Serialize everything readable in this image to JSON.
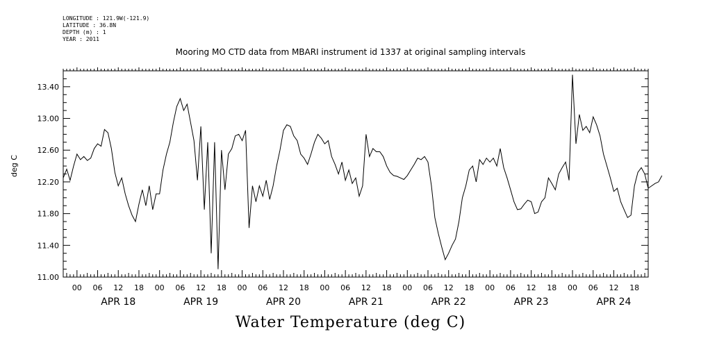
{
  "header": {
    "longitude": "LONGITUDE : 121.9W(-121.9)",
    "latitude": "LATITUDE : 36.8N",
    "depth": "DEPTH (m) : 1",
    "year": "YEAR : 2011"
  },
  "chart_data": {
    "type": "line",
    "title": "Mooring MO CTD data from MBARI instrument id 1337 at original sampling intervals",
    "xlabel": "Water Temperature (deg C)",
    "ylabel": "deg C",
    "ylim": [
      11.0,
      13.6
    ],
    "xlim": [
      "2011-04-17T20:00",
      "2011-04-24T22:00"
    ],
    "y_ticks": [
      "11.00",
      "11.40",
      "11.80",
      "12.20",
      "12.60",
      "13.00",
      "13.40"
    ],
    "hour_tick_labels": [
      "00",
      "06",
      "12",
      "18"
    ],
    "day_labels": [
      {
        "date": "2011-04-18",
        "label": "APR 18"
      },
      {
        "date": "2011-04-19",
        "label": "APR 19"
      },
      {
        "date": "2011-04-20",
        "label": "APR 20"
      },
      {
        "date": "2011-04-21",
        "label": "APR 21"
      },
      {
        "date": "2011-04-22",
        "label": "APR 22"
      },
      {
        "date": "2011-04-23",
        "label": "APR 23"
      },
      {
        "date": "2011-04-24",
        "label": "APR 24"
      }
    ],
    "grid": false,
    "series": [
      {
        "color": "#000000",
        "points": [
          [
            "2011-04-17T20:00",
            12.25
          ],
          [
            "2011-04-17T21:00",
            12.36
          ],
          [
            "2011-04-17T22:00",
            12.22
          ],
          [
            "2011-04-17T23:00",
            12.4
          ],
          [
            "2011-04-18T00:00",
            12.55
          ],
          [
            "2011-04-18T01:00",
            12.48
          ],
          [
            "2011-04-18T02:00",
            12.52
          ],
          [
            "2011-04-18T03:00",
            12.47
          ],
          [
            "2011-04-18T04:00",
            12.5
          ],
          [
            "2011-04-18T05:00",
            12.62
          ],
          [
            "2011-04-18T06:00",
            12.68
          ],
          [
            "2011-04-18T07:00",
            12.65
          ],
          [
            "2011-04-18T08:00",
            12.86
          ],
          [
            "2011-04-18T09:00",
            12.82
          ],
          [
            "2011-04-18T10:00",
            12.62
          ],
          [
            "2011-04-18T11:00",
            12.32
          ],
          [
            "2011-04-18T12:00",
            12.15
          ],
          [
            "2011-04-18T13:00",
            12.25
          ],
          [
            "2011-04-18T14:00",
            12.05
          ],
          [
            "2011-04-18T15:00",
            11.9
          ],
          [
            "2011-04-18T16:00",
            11.78
          ],
          [
            "2011-04-18T17:00",
            11.7
          ],
          [
            "2011-04-18T18:00",
            11.92
          ],
          [
            "2011-04-18T19:00",
            12.1
          ],
          [
            "2011-04-18T20:00",
            11.9
          ],
          [
            "2011-04-18T21:00",
            12.15
          ],
          [
            "2011-04-18T22:00",
            11.85
          ],
          [
            "2011-04-18T23:00",
            12.05
          ],
          [
            "2011-04-19T00:00",
            12.05
          ],
          [
            "2011-04-19T01:00",
            12.35
          ],
          [
            "2011-04-19T02:00",
            12.55
          ],
          [
            "2011-04-19T03:00",
            12.7
          ],
          [
            "2011-04-19T04:00",
            12.95
          ],
          [
            "2011-04-19T05:00",
            13.15
          ],
          [
            "2011-04-19T06:00",
            13.25
          ],
          [
            "2011-04-19T07:00",
            13.1
          ],
          [
            "2011-04-19T08:00",
            13.18
          ],
          [
            "2011-04-19T09:00",
            12.95
          ],
          [
            "2011-04-19T10:00",
            12.72
          ],
          [
            "2011-04-19T11:00",
            12.22
          ],
          [
            "2011-04-19T12:00",
            12.9
          ],
          [
            "2011-04-19T13:00",
            11.85
          ],
          [
            "2011-04-19T14:00",
            12.7
          ],
          [
            "2011-04-19T15:00",
            11.3
          ],
          [
            "2011-04-19T16:00",
            12.7
          ],
          [
            "2011-04-19T17:00",
            11.1
          ],
          [
            "2011-04-19T18:00",
            12.6
          ],
          [
            "2011-04-19T19:00",
            12.1
          ],
          [
            "2011-04-19T20:00",
            12.55
          ],
          [
            "2011-04-19T21:00",
            12.62
          ],
          [
            "2011-04-19T22:00",
            12.78
          ],
          [
            "2011-04-19T23:00",
            12.8
          ],
          [
            "2011-04-20T00:00",
            12.72
          ],
          [
            "2011-04-20T01:00",
            12.85
          ],
          [
            "2011-04-20T02:00",
            11.62
          ],
          [
            "2011-04-20T03:00",
            12.15
          ],
          [
            "2011-04-20T04:00",
            11.95
          ],
          [
            "2011-04-20T05:00",
            12.15
          ],
          [
            "2011-04-20T06:00",
            12.02
          ],
          [
            "2011-04-20T07:00",
            12.22
          ],
          [
            "2011-04-20T08:00",
            11.98
          ],
          [
            "2011-04-20T09:00",
            12.15
          ],
          [
            "2011-04-20T10:00",
            12.4
          ],
          [
            "2011-04-20T11:00",
            12.6
          ],
          [
            "2011-04-20T12:00",
            12.85
          ],
          [
            "2011-04-20T13:00",
            12.92
          ],
          [
            "2011-04-20T14:00",
            12.9
          ],
          [
            "2011-04-20T15:00",
            12.78
          ],
          [
            "2011-04-20T16:00",
            12.72
          ],
          [
            "2011-04-20T17:00",
            12.55
          ],
          [
            "2011-04-20T18:00",
            12.5
          ],
          [
            "2011-04-20T19:00",
            12.42
          ],
          [
            "2011-04-20T20:00",
            12.55
          ],
          [
            "2011-04-20T21:00",
            12.7
          ],
          [
            "2011-04-20T22:00",
            12.8
          ],
          [
            "2011-04-20T23:00",
            12.75
          ],
          [
            "2011-04-21T00:00",
            12.68
          ],
          [
            "2011-04-21T01:00",
            12.72
          ],
          [
            "2011-04-21T02:00",
            12.52
          ],
          [
            "2011-04-21T03:00",
            12.42
          ],
          [
            "2011-04-21T04:00",
            12.3
          ],
          [
            "2011-04-21T05:00",
            12.45
          ],
          [
            "2011-04-21T06:00",
            12.22
          ],
          [
            "2011-04-21T07:00",
            12.35
          ],
          [
            "2011-04-21T08:00",
            12.18
          ],
          [
            "2011-04-21T09:00",
            12.25
          ],
          [
            "2011-04-21T10:00",
            12.02
          ],
          [
            "2011-04-21T11:00",
            12.15
          ],
          [
            "2011-04-21T12:00",
            12.8
          ],
          [
            "2011-04-21T13:00",
            12.52
          ],
          [
            "2011-04-21T14:00",
            12.62
          ],
          [
            "2011-04-21T15:00",
            12.58
          ],
          [
            "2011-04-21T16:00",
            12.58
          ],
          [
            "2011-04-21T17:00",
            12.52
          ],
          [
            "2011-04-21T18:00",
            12.4
          ],
          [
            "2011-04-21T19:00",
            12.32
          ],
          [
            "2011-04-21T20:00",
            12.28
          ],
          [
            "2011-04-21T21:00",
            12.27
          ],
          [
            "2011-04-21T22:00",
            12.25
          ],
          [
            "2011-04-21T23:00",
            12.23
          ],
          [
            "2011-04-22T00:00",
            12.28
          ],
          [
            "2011-04-22T01:00",
            12.35
          ],
          [
            "2011-04-22T02:00",
            12.42
          ],
          [
            "2011-04-22T03:00",
            12.5
          ],
          [
            "2011-04-22T04:00",
            12.48
          ],
          [
            "2011-04-22T05:00",
            12.52
          ],
          [
            "2011-04-22T06:00",
            12.45
          ],
          [
            "2011-04-22T07:00",
            12.15
          ],
          [
            "2011-04-22T08:00",
            11.75
          ],
          [
            "2011-04-22T09:00",
            11.55
          ],
          [
            "2011-04-22T10:00",
            11.38
          ],
          [
            "2011-04-22T11:00",
            11.22
          ],
          [
            "2011-04-22T12:00",
            11.3
          ],
          [
            "2011-04-22T13:00",
            11.4
          ],
          [
            "2011-04-22T14:00",
            11.48
          ],
          [
            "2011-04-22T15:00",
            11.7
          ],
          [
            "2011-04-22T16:00",
            12.0
          ],
          [
            "2011-04-22T17:00",
            12.15
          ],
          [
            "2011-04-22T18:00",
            12.35
          ],
          [
            "2011-04-22T19:00",
            12.4
          ],
          [
            "2011-04-22T20:00",
            12.2
          ],
          [
            "2011-04-22T21:00",
            12.48
          ],
          [
            "2011-04-22T22:00",
            12.42
          ],
          [
            "2011-04-22T23:00",
            12.5
          ],
          [
            "2011-04-23T00:00",
            12.45
          ],
          [
            "2011-04-23T01:00",
            12.5
          ],
          [
            "2011-04-23T02:00",
            12.4
          ],
          [
            "2011-04-23T03:00",
            12.62
          ],
          [
            "2011-04-23T04:00",
            12.38
          ],
          [
            "2011-04-23T05:00",
            12.25
          ],
          [
            "2011-04-23T06:00",
            12.1
          ],
          [
            "2011-04-23T07:00",
            11.95
          ],
          [
            "2011-04-23T08:00",
            11.85
          ],
          [
            "2011-04-23T09:00",
            11.86
          ],
          [
            "2011-04-23T10:00",
            11.92
          ],
          [
            "2011-04-23T11:00",
            11.97
          ],
          [
            "2011-04-23T12:00",
            11.95
          ],
          [
            "2011-04-23T13:00",
            11.8
          ],
          [
            "2011-04-23T14:00",
            11.82
          ],
          [
            "2011-04-23T15:00",
            11.95
          ],
          [
            "2011-04-23T16:00",
            12.0
          ],
          [
            "2011-04-23T17:00",
            12.25
          ],
          [
            "2011-04-23T18:00",
            12.18
          ],
          [
            "2011-04-23T19:00",
            12.1
          ],
          [
            "2011-04-23T20:00",
            12.3
          ],
          [
            "2011-04-23T21:00",
            12.38
          ],
          [
            "2011-04-23T22:00",
            12.45
          ],
          [
            "2011-04-23T23:00",
            12.22
          ],
          [
            "2011-04-24T00:00",
            13.55
          ],
          [
            "2011-04-24T01:00",
            12.68
          ],
          [
            "2011-04-24T02:00",
            13.05
          ],
          [
            "2011-04-24T03:00",
            12.85
          ],
          [
            "2011-04-24T04:00",
            12.9
          ],
          [
            "2011-04-24T05:00",
            12.82
          ],
          [
            "2011-04-24T06:00",
            13.02
          ],
          [
            "2011-04-24T07:00",
            12.92
          ],
          [
            "2011-04-24T08:00",
            12.78
          ],
          [
            "2011-04-24T09:00",
            12.55
          ],
          [
            "2011-04-24T10:00",
            12.4
          ],
          [
            "2011-04-24T11:00",
            12.25
          ],
          [
            "2011-04-24T12:00",
            12.08
          ],
          [
            "2011-04-24T13:00",
            12.12
          ],
          [
            "2011-04-24T14:00",
            11.95
          ],
          [
            "2011-04-24T15:00",
            11.85
          ],
          [
            "2011-04-24T16:00",
            11.75
          ],
          [
            "2011-04-24T17:00",
            11.78
          ],
          [
            "2011-04-24T18:00",
            12.15
          ],
          [
            "2011-04-24T19:00",
            12.32
          ],
          [
            "2011-04-24T20:00",
            12.38
          ],
          [
            "2011-04-24T21:00",
            12.3
          ],
          [
            "2011-04-24T22:00",
            12.12
          ],
          [
            "2011-04-24T23:00",
            12.15
          ],
          [
            "2011-04-25T00:00",
            12.18
          ],
          [
            "2011-04-25T01:00",
            12.2
          ],
          [
            "2011-04-25T02:00",
            12.28
          ]
        ]
      }
    ]
  }
}
